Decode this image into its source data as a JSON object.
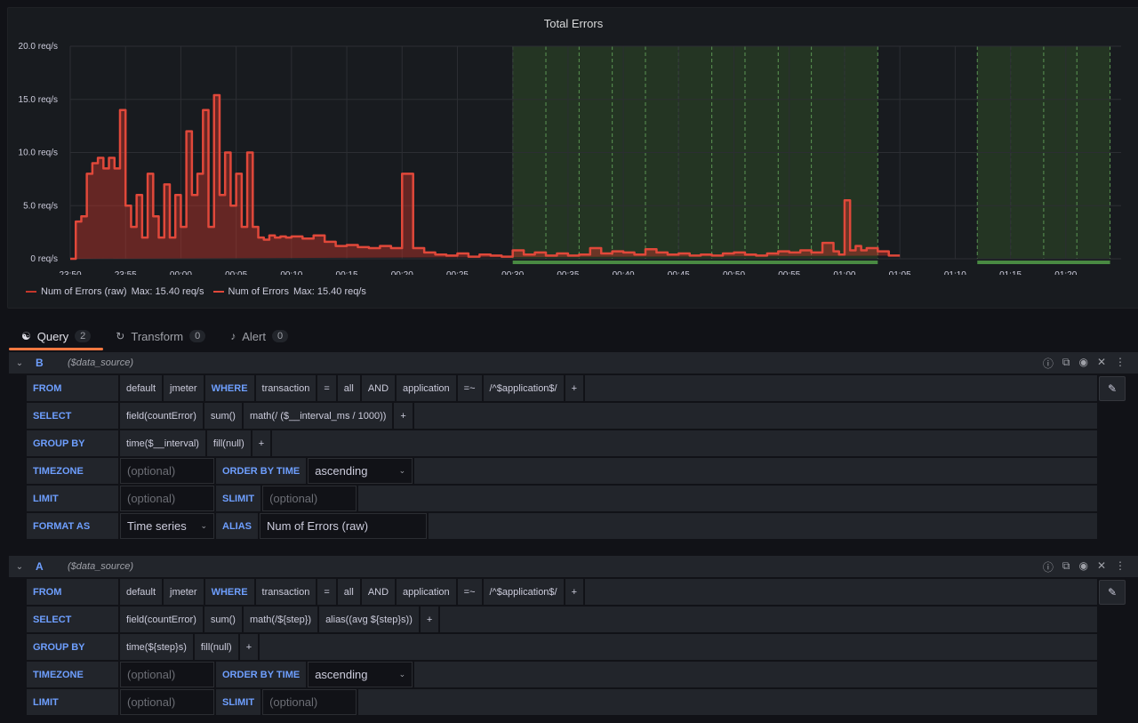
{
  "panel": {
    "title": "Total Errors"
  },
  "chart_data": {
    "type": "area",
    "title": "Total Errors",
    "ylim": [
      0,
      20
    ],
    "y_ticks": [
      "0 req/s",
      "5.0 req/s",
      "10.0 req/s",
      "15.0 req/s",
      "20.0 req/s"
    ],
    "x_ticks": [
      "23:50",
      "23:55",
      "00:00",
      "00:05",
      "00:10",
      "00:15",
      "00:20",
      "00:25",
      "00:30",
      "00:35",
      "00:40",
      "00:45",
      "00:50",
      "00:55",
      "01:00",
      "01:05",
      "01:10",
      "01:15",
      "01:20"
    ],
    "x_minutes": [
      0,
      0.5,
      1,
      1.5,
      2,
      2.5,
      3,
      3.5,
      4,
      4.5,
      5,
      5.5,
      6,
      6.5,
      7,
      7.5,
      8,
      8.5,
      9,
      9.5,
      10,
      10.5,
      11,
      11.5,
      12,
      12.5,
      13,
      13.5,
      14,
      14.5,
      15,
      15.5,
      16,
      16.5,
      17,
      17.5,
      18,
      18.5,
      19,
      19.5,
      20,
      21,
      22,
      23,
      24,
      25,
      26,
      27,
      28,
      29,
      30,
      31,
      32,
      33,
      34,
      35,
      36,
      37,
      38,
      39,
      40,
      41,
      42,
      43,
      44,
      45,
      46,
      47,
      48,
      49,
      50,
      51,
      52,
      53,
      54,
      55,
      56,
      57,
      58,
      59,
      60,
      61,
      62,
      63,
      64,
      65,
      66,
      67,
      68,
      69,
      69.5,
      70,
      70.5,
      71,
      71.5,
      72,
      73,
      74,
      75,
      75.5
    ],
    "series": [
      {
        "name": "Num of Errors (raw)",
        "color": "#c4362b",
        "values": [
          0,
          3.5,
          4,
          8,
          9,
          9.5,
          8.5,
          9.5,
          8.5,
          14,
          5,
          3,
          6,
          2,
          8,
          4,
          2,
          7,
          2,
          6,
          3,
          12,
          6,
          8,
          14,
          3,
          15.4,
          6,
          10,
          5,
          8,
          3,
          10,
          3,
          2,
          1.8,
          2.2,
          2,
          2.1,
          2,
          2.1,
          1.9,
          2.2,
          1.6,
          1.2,
          1.3,
          1.1,
          1,
          1.2,
          1,
          8,
          1,
          0.6,
          0.4,
          0.3,
          0.5,
          0.2,
          0.4,
          0.3,
          0.2,
          0.8,
          0.4,
          0.6,
          0.3,
          0.5,
          0.3,
          0.4,
          1,
          0.5,
          0.7,
          0.6,
          0.4,
          0.9,
          0.6,
          0.4,
          0.5,
          0.3,
          0.4,
          0.3,
          0.5,
          0.6,
          0.4,
          0.3,
          0.5,
          0.7,
          0.6,
          0.8,
          0.6,
          1.5,
          0.7,
          0.4,
          5.5,
          0.8,
          1.2,
          0.8,
          1,
          0.7,
          0.3
        ]
      },
      {
        "name": "Num of Errors",
        "color": "#e0483a",
        "values": [
          0,
          3.5,
          4,
          8,
          9,
          9.5,
          8.5,
          9.5,
          8.5,
          14,
          5,
          3,
          6,
          2,
          8,
          4,
          2,
          7,
          2,
          6,
          3,
          12,
          6,
          8,
          14,
          3,
          15.4,
          6,
          10,
          5,
          8,
          3,
          10,
          3,
          2,
          1.8,
          2.2,
          2,
          2.1,
          2,
          2.1,
          1.9,
          2.2,
          1.6,
          1.2,
          1.3,
          1.1,
          1,
          1.2,
          1,
          8,
          1,
          0.6,
          0.4,
          0.3,
          0.5,
          0.2,
          0.4,
          0.3,
          0.2,
          0.8,
          0.4,
          0.6,
          0.3,
          0.5,
          0.3,
          0.4,
          1,
          0.5,
          0.7,
          0.6,
          0.4,
          0.9,
          0.6,
          0.4,
          0.5,
          0.3,
          0.4,
          0.3,
          0.5,
          0.6,
          0.4,
          0.3,
          0.5,
          0.7,
          0.6,
          0.8,
          0.6,
          1.5,
          0.7,
          0.4,
          5.5,
          0.8,
          1.2,
          0.8,
          1,
          0.7,
          0.3
        ]
      }
    ],
    "green_regions_minutes": [
      [
        40,
        73
      ],
      [
        82,
        94
      ]
    ],
    "legend": [
      "Num of Errors (raw)  Max: 15.40 req/s",
      "Num of Errors  Max: 15.40 req/s"
    ],
    "grid": true,
    "legend_position": "bottom-left"
  },
  "legend": {
    "item1": {
      "name": "Num of Errors (raw)",
      "max": "Max: 15.40 req/s"
    },
    "item2": {
      "name": "Num of Errors",
      "max": "Max: 15.40 req/s"
    }
  },
  "tabs": {
    "query": {
      "label": "Query",
      "count": "2"
    },
    "transform": {
      "label": "Transform",
      "count": "0"
    },
    "alert": {
      "label": "Alert",
      "count": "0"
    }
  },
  "queries": {
    "B": {
      "ref": "B",
      "ds": "($data_source)",
      "from": [
        "default",
        "jmeter"
      ],
      "where_kw": "WHERE",
      "where": [
        "transaction",
        "=",
        "all",
        "AND",
        "application",
        "=~",
        "/^$application$/",
        "+"
      ],
      "select": [
        "field(countError)",
        "sum()",
        "math(/ ($__interval_ms / 1000))",
        "+"
      ],
      "group_by": [
        "time($__interval)",
        "fill(null)",
        "+"
      ],
      "timezone_ph": "(optional)",
      "order_label": "ORDER BY TIME",
      "order_value": "ascending",
      "limit_ph": "(optional)",
      "slimit_label": "SLIMIT",
      "slimit_ph": "(optional)",
      "format_value": "Time series",
      "alias_label": "ALIAS",
      "alias_value": "Num of Errors (raw)"
    },
    "A": {
      "ref": "A",
      "ds": "($data_source)",
      "from": [
        "default",
        "jmeter"
      ],
      "where_kw": "WHERE",
      "where": [
        "transaction",
        "=",
        "all",
        "AND",
        "application",
        "=~",
        "/^$application$/",
        "+"
      ],
      "select": [
        "field(countError)",
        "sum()",
        "math(/${step})",
        "alias((avg ${step}s))",
        "+"
      ],
      "group_by": [
        "time(${step}s)",
        "fill(null)",
        "+"
      ],
      "timezone_ph": "(optional)",
      "order_label": "ORDER BY TIME",
      "order_value": "ascending",
      "limit_ph": "(optional)",
      "slimit_label": "SLIMIT",
      "slimit_ph": "(optional)"
    }
  },
  "labels": {
    "from": "FROM",
    "select": "SELECT",
    "group_by": "GROUP BY",
    "timezone": "TIMEZONE",
    "limit": "LIMIT",
    "format_as": "FORMAT AS"
  }
}
